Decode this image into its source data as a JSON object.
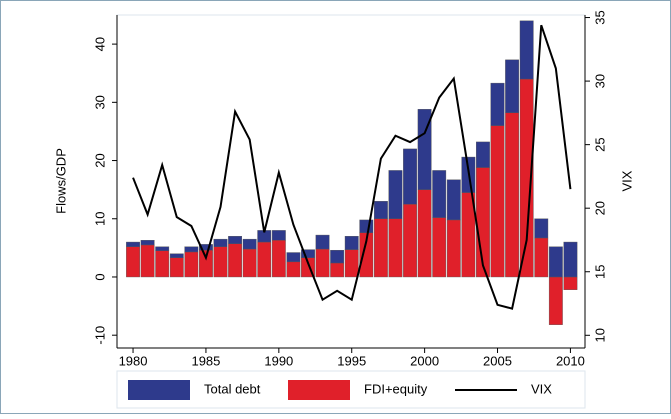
{
  "chart_data": {
    "type": "bar",
    "stacked": true,
    "x": [
      1980,
      1981,
      1982,
      1983,
      1984,
      1985,
      1986,
      1987,
      1988,
      1989,
      1990,
      1991,
      1992,
      1993,
      1994,
      1995,
      1996,
      1997,
      1998,
      1999,
      2000,
      2001,
      2002,
      2003,
      2004,
      2005,
      2006,
      2007,
      2008,
      2009,
      2010
    ],
    "xlim": [
      1978.9,
      2011
    ],
    "xticks": [
      1980,
      1985,
      1990,
      1995,
      2000,
      2005,
      2010
    ],
    "y_label": "Flows/GDP",
    "ylim": [
      -12.2,
      45
    ],
    "yticks": [
      -10,
      0,
      10,
      20,
      30,
      40
    ],
    "y2_label": "VIX",
    "y2lim": [
      9,
      35.2
    ],
    "y2ticks": [
      10,
      15,
      20,
      25,
      30,
      35
    ],
    "series": [
      {
        "name": "Total debt",
        "color": "#2e3a8c",
        "values": [
          0.8,
          0.8,
          0.7,
          0.7,
          0.9,
          1.0,
          1.3,
          1.3,
          1.7,
          2,
          1.7,
          1.6,
          1.4,
          2.4,
          2.2,
          2.3,
          2.2,
          3,
          8.3,
          9.5,
          13.8,
          8.1,
          6.9,
          6.1,
          4.4,
          7.3,
          9.1,
          10,
          3.3,
          5.2,
          6
        ]
      },
      {
        "name": "FDI+equity",
        "color": "#e0202a",
        "values": [
          5.2,
          5.5,
          4.5,
          3.3,
          4.3,
          4.6,
          5.2,
          5.7,
          4.8,
          6,
          6.3,
          2.6,
          3.3,
          4.8,
          2.4,
          4.7,
          7.6,
          10,
          10,
          12.5,
          15,
          10.2,
          9.8,
          14.5,
          18.8,
          26,
          28.2,
          34,
          6.7,
          -8.2,
          -2.2
        ]
      },
      {
        "name": "VIX",
        "color": "#000000",
        "type": "line",
        "axis": "y2",
        "values": [
          22.4,
          19.5,
          23.4,
          19.3,
          18.6,
          16.1,
          20.1,
          27.6,
          25.4,
          18.1,
          22.8,
          18.7,
          15.7,
          12.8,
          13.5,
          12.8,
          17.4,
          23.9,
          25.7,
          25.2,
          25.9,
          28.7,
          30.2,
          23,
          15.5,
          12.4,
          12.1,
          17.5,
          34.4,
          31,
          21.5
        ]
      }
    ]
  }
}
